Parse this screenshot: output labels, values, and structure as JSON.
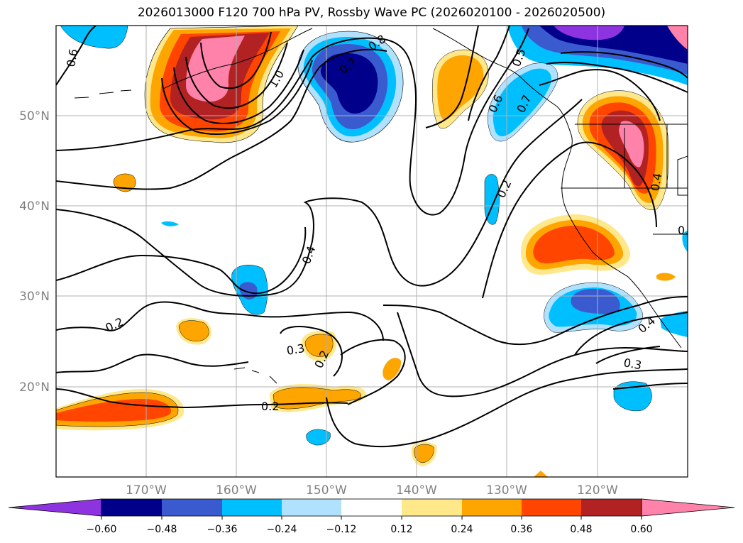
{
  "title": "2026013000 F120 700 hPa PV, Rossby Wave PC (2026020100 - 2026020500)",
  "colors": {
    "neg_060": "#8e33e0",
    "neg_048": "#00008b",
    "neg_036": "#3a5bd0",
    "neg_024": "#00bfff",
    "neg_012": "#b0e2ff",
    "neutral": "#ffffff",
    "pos_012": "#ffe88a",
    "pos_024": "#ffa500",
    "pos_036": "#ff4500",
    "pos_048": "#b22222",
    "pos_060": "#ff82ab"
  },
  "latitude_labels": [
    "50°N",
    "40°N",
    "30°N",
    "20°N"
  ],
  "longitude_labels": [
    "170°W",
    "160°W",
    "150°W",
    "140°W",
    "130°W",
    "120°W"
  ],
  "colorbar_ticks": [
    "−0.60",
    "−0.48",
    "−0.36",
    "−0.24",
    "−0.12",
    "0.12",
    "0.24",
    "0.36",
    "0.48",
    "0.60"
  ],
  "contour_labels": [
    "0.6",
    "1.0",
    "0.7",
    "0.8",
    "0.5",
    "0.6",
    "0.7",
    "0.2",
    "0.4",
    "0.4",
    "0.2",
    "0.3",
    "0.2",
    "0.2",
    "0.3",
    "0.4",
    "0.4"
  ]
}
